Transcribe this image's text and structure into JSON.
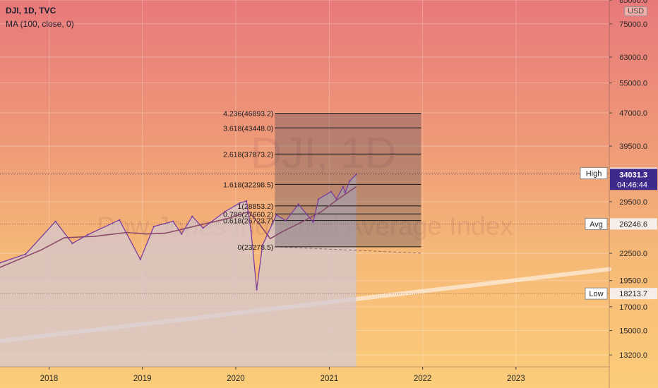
{
  "header": {
    "symbol_line": "DJI, 1D, TVC",
    "indicator_line": "MA (100, close, 0)"
  },
  "currency_badge": "USD",
  "watermark": {
    "symbol": "DJI, 1D",
    "name": "Dow Jones Industrial Average Index"
  },
  "colors": {
    "price": "#7b3f9e",
    "ma": "#8a4a6a",
    "price_badge": "#3d2a8a",
    "shade": "#d8c9cc"
  },
  "chart_data": {
    "type": "line",
    "title": "DJI, 1D, TVC",
    "xlabel": "",
    "ylabel": "",
    "y_scale": "log",
    "ylim": [
      12400,
      85000
    ],
    "xlim": [
      "2017-06-23",
      "2024-01-01"
    ],
    "x_ticks": [
      "2018",
      "2019",
      "2020",
      "2021",
      "2022",
      "2023"
    ],
    "y_ticks": [
      "85000.0",
      "75000.0",
      "63000.0",
      "55000.0",
      "47000.0",
      "39500.0",
      "34256.8",
      "34031.3",
      "29500.0",
      "26246.6",
      "22500.0",
      "19500.0",
      "18213.7",
      "17000.0",
      "15000.0",
      "13200.0"
    ],
    "series": [
      {
        "name": "DJI",
        "x": [
          "2017-06-23",
          "2017-10-01",
          "2018-01-26",
          "2018-04-02",
          "2018-06-01",
          "2018-10-03",
          "2018-12-24",
          "2019-02-15",
          "2019-05-01",
          "2019-06-03",
          "2019-07-15",
          "2019-08-26",
          "2019-11-20",
          "2020-01-17",
          "2020-02-12",
          "2020-03-01",
          "2020-03-23",
          "2020-04-15",
          "2020-06-08",
          "2020-07-15",
          "2020-09-02",
          "2020-10-30",
          "2020-11-20",
          "2021-01-08",
          "2021-01-29",
          "2021-02-24",
          "2021-03-04",
          "2021-03-22",
          "2021-04-16"
        ],
        "values": [
          21400,
          22400,
          26600,
          23700,
          24800,
          26800,
          21800,
          25900,
          26600,
          24900,
          27300,
          25700,
          28000,
          29300,
          29600,
          25300,
          18600,
          23500,
          27500,
          26700,
          29100,
          26500,
          29900,
          31100,
          29900,
          31900,
          30900,
          32900,
          34031.3
        ]
      },
      {
        "name": "MA (100, close, 0)",
        "x": [
          "2017-06-23",
          "2017-12-01",
          "2018-03-01",
          "2018-07-01",
          "2018-11-01",
          "2019-01-15",
          "2019-04-01",
          "2019-08-01",
          "2019-12-01",
          "2020-02-20",
          "2020-04-01",
          "2020-05-15",
          "2020-07-01",
          "2020-09-15",
          "2020-12-01",
          "2021-02-01",
          "2021-04-16"
        ],
        "values": [
          20900,
          22900,
          24400,
          24600,
          25100,
          24900,
          25000,
          26000,
          27000,
          28000,
          26300,
          24300,
          25200,
          26500,
          28000,
          29800,
          31900
        ]
      }
    ],
    "fibonacci": {
      "start": "2020-06-02",
      "end": "2021-12-26",
      "levels": [
        {
          "label": "4.236(46893.2)",
          "value": 46893.2
        },
        {
          "label": "3.618(43448.0)",
          "value": 43448.0
        },
        {
          "label": "2.618(37873.2)",
          "value": 37873.2
        },
        {
          "label": "1.618(32298.5)",
          "value": 32298.5
        },
        {
          "label": "1(28853.2)",
          "value": 28853.2
        },
        {
          "label": "0.786(27660.2)",
          "value": 27660.2
        },
        {
          "label": "0.618(26723.7)",
          "value": 26723.7
        },
        {
          "label": "0(23278.5)",
          "value": 23278.5
        }
      ]
    },
    "trendline": {
      "x1": "2017-06-23",
      "y1": 14200,
      "x2": "2024-01-01",
      "y2": 20700
    },
    "markers": [
      {
        "label": "High",
        "value": 34256.8,
        "price": "34256.8"
      },
      {
        "label": "Avg",
        "value": 26246.6,
        "price": "26246.6"
      },
      {
        "label": "Low",
        "value": 18213.7,
        "price": "18213.7"
      }
    ],
    "last_price": {
      "value": 34031.3,
      "price": "34031.3",
      "countdown": "04:46:44"
    }
  }
}
